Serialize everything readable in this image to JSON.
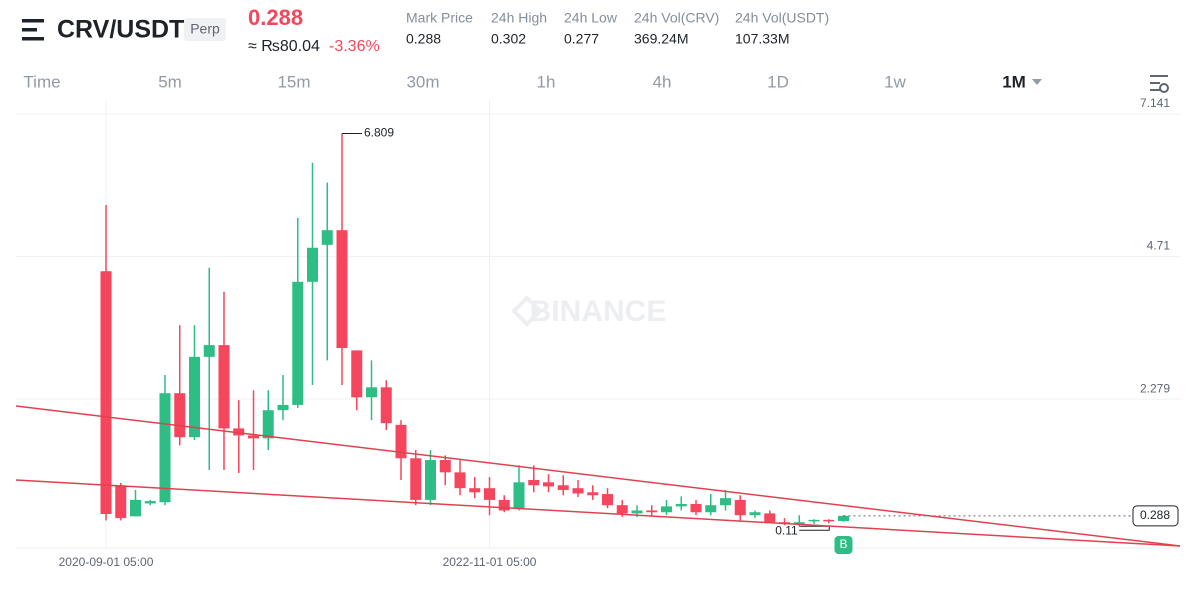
{
  "header": {
    "symbol": "CRV/USDT",
    "badge": "Perp",
    "price": "0.288",
    "approx": "≈ ₨80.04",
    "change": "-3.36%",
    "stats": [
      {
        "label": "Mark Price",
        "value": "0.288"
      },
      {
        "label": "24h High",
        "value": "0.302"
      },
      {
        "label": "24h Low",
        "value": "0.277"
      },
      {
        "label": "24h Vol(CRV)",
        "value": "369.24M"
      },
      {
        "label": "24h Vol(USDT)",
        "value": "107.33M"
      }
    ]
  },
  "tabs": [
    "Time",
    "5m",
    "15m",
    "30m",
    "1h",
    "4h",
    "1D",
    "1w",
    "1M"
  ],
  "chart_data": {
    "type": "candlestick",
    "watermark": "BINANCE",
    "marker_label": "B",
    "categories": [
      "2020-09-01 05:00",
      null,
      null,
      null,
      null,
      null,
      null,
      null,
      null,
      null,
      null,
      null,
      null,
      null,
      null,
      null,
      null,
      null,
      null,
      null,
      null,
      null,
      null,
      null,
      null,
      null,
      "2022-11-01 05:00",
      null,
      null,
      null,
      null,
      null,
      null,
      null,
      null,
      null,
      null,
      null,
      null,
      null,
      null,
      null,
      null,
      null,
      null,
      null,
      null,
      null,
      null,
      null,
      null
    ],
    "open": [
      4.46,
      0.81,
      0.28,
      0.5,
      0.52,
      2.38,
      1.63,
      3.0,
      3.2,
      1.78,
      1.66,
      1.61,
      2.09,
      2.18,
      4.28,
      4.91,
      5.16,
      3.11,
      2.31,
      2.48,
      1.84,
      1.27,
      0.56,
      1.24,
      1.03,
      0.76,
      0.76,
      0.56,
      0.42,
      0.9,
      0.86,
      0.81,
      0.76,
      0.69,
      0.66,
      0.47,
      0.33,
      0.38,
      0.35,
      0.45,
      0.49,
      0.35,
      0.47,
      0.56,
      0.3,
      0.33,
      0.18,
      0.15,
      0.2,
      0.22,
      0.2
    ],
    "high": [
      5.59,
      0.85,
      0.73,
      0.56,
      2.69,
      3.54,
      3.54,
      4.52,
      4.11,
      2.26,
      2.43,
      2.43,
      2.69,
      5.37,
      6.31,
      5.97,
      6.809,
      3.11,
      2.94,
      2.6,
      1.92,
      1.41,
      1.41,
      1.32,
      1.24,
      0.95,
      0.95,
      0.64,
      1.15,
      1.15,
      1.0,
      0.98,
      0.9,
      0.81,
      0.76,
      0.56,
      0.47,
      0.47,
      0.56,
      0.62,
      0.56,
      0.66,
      0.73,
      0.64,
      0.38,
      0.38,
      0.25,
      0.3,
      0.23,
      0.23,
      0.3
    ],
    "low": [
      0.21,
      0.21,
      0.28,
      0.47,
      0.47,
      1.49,
      1.58,
      1.07,
      1.07,
      1.02,
      1.07,
      1.41,
      1.92,
      2.13,
      2.52,
      2.94,
      2.52,
      2.09,
      1.92,
      1.75,
      0.9,
      0.47,
      0.47,
      0.81,
      0.64,
      0.59,
      0.3,
      0.35,
      0.38,
      0.69,
      0.69,
      0.64,
      0.61,
      0.56,
      0.42,
      0.27,
      0.27,
      0.28,
      0.3,
      0.38,
      0.3,
      0.3,
      0.38,
      0.21,
      0.25,
      0.179,
      0.13,
      0.11,
      0.15,
      0.16,
      0.19
    ],
    "close": [
      0.32,
      0.25,
      0.56,
      0.54,
      2.38,
      1.63,
      3.0,
      3.2,
      1.78,
      1.66,
      1.61,
      2.09,
      2.18,
      4.28,
      4.86,
      5.16,
      3.15,
      2.31,
      2.48,
      1.87,
      1.27,
      0.56,
      1.24,
      1.03,
      0.76,
      0.69,
      0.56,
      0.38,
      0.86,
      0.81,
      0.79,
      0.73,
      0.67,
      0.64,
      0.47,
      0.33,
      0.38,
      0.35,
      0.45,
      0.49,
      0.35,
      0.47,
      0.59,
      0.3,
      0.35,
      0.18,
      0.15,
      0.18,
      0.22,
      0.2,
      0.288
    ],
    "up_color": "#2ebd85",
    "down_color": "#f6465d",
    "ylim": [
      -0.26,
      7.38
    ],
    "yticks": [
      2.279,
      4.71,
      7.141
    ],
    "grid": true
  }
}
